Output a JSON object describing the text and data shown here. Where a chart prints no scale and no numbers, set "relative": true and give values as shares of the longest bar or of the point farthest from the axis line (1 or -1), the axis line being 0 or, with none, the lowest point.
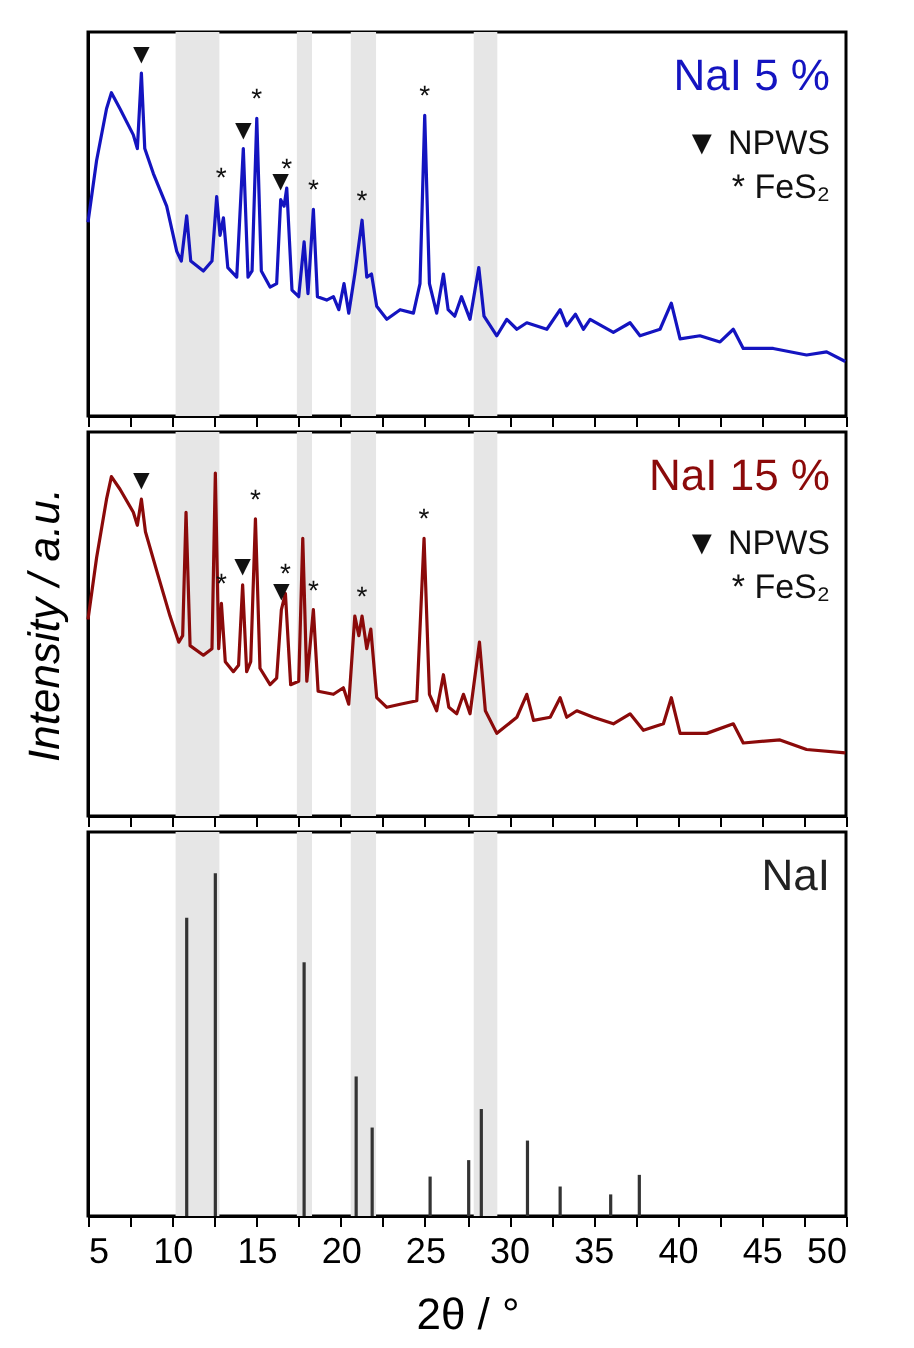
{
  "chart_data": [
    {
      "type": "line",
      "title": "NaI 5 %",
      "relative": true,
      "tick_labels": false,
      "xlim": [
        5,
        50
      ],
      "xticks": [
        5,
        {
          "value": 7.5,
          "label": null
        },
        10,
        {
          "value": 12.5,
          "label": null
        },
        15,
        {
          "value": 17.5,
          "label": null
        },
        20,
        {
          "value": 22.5,
          "label": null
        },
        25,
        {
          "value": 27.5,
          "label": null
        },
        30,
        {
          "value": 32.5,
          "label": null
        },
        35,
        {
          "value": 37.5,
          "label": null
        },
        40,
        {
          "value": 42.5,
          "label": null
        },
        45,
        {
          "value": 47.5,
          "label": null
        },
        50
      ],
      "bands": [
        {
          "axis": "x",
          "from": 10.2,
          "to": 12.8,
          "color": "#e6e6e6"
        },
        {
          "axis": "x",
          "from": 17.4,
          "to": 18.3,
          "color": "#e6e6e6"
        },
        {
          "axis": "x",
          "from": 20.6,
          "to": 22.1,
          "color": "#e6e6e6"
        },
        {
          "axis": "x",
          "from": 27.9,
          "to": 29.3,
          "color": "#e6e6e6"
        }
      ],
      "annotations": [
        "▼ NPWS",
        "* FeS₂",
        {
          "text": "▼",
          "x": 8.17,
          "y": 1.0
        },
        {
          "text": "*",
          "x": 12.9,
          "y": 0.64
        },
        {
          "text": "▼",
          "x": 14.22,
          "y": 0.78
        },
        {
          "text": "*",
          "x": 15.02,
          "y": 0.868
        },
        {
          "text": "▼",
          "x": 16.44,
          "y": 0.631
        },
        {
          "text": "*",
          "x": 16.8,
          "y": 0.665
        },
        {
          "text": "*",
          "x": 18.38,
          "y": 0.603
        },
        {
          "text": "*",
          "x": 21.27,
          "y": 0.571
        },
        {
          "text": "*",
          "x": 24.99,
          "y": 0.877
        }
      ],
      "series": [
        {
          "color": "#1414c0",
          "x": [
            5.0,
            5.51,
            6.1,
            6.39,
            6.9,
            7.69,
            7.93,
            8.17,
            8.37,
            8.88,
            9.67,
            10.27,
            10.54,
            10.86,
            11.1,
            11.85,
            12.36,
            12.64,
            12.84,
            13.04,
            13.3,
            13.83,
            14.22,
            14.5,
            14.74,
            15.02,
            15.29,
            15.81,
            16.2,
            16.44,
            16.64,
            16.8,
            17.11,
            17.51,
            17.83,
            18.06,
            18.38,
            18.62,
            19.17,
            19.57,
            19.89,
            20.2,
            20.48,
            20.84,
            21.27,
            21.55,
            21.83,
            22.14,
            22.74,
            23.53,
            24.32,
            24.71,
            24.99,
            25.27,
            25.7,
            26.1,
            26.38,
            26.77,
            27.17,
            27.68,
            28.2,
            28.51,
            29.27,
            29.86,
            30.46,
            31.05,
            32.24,
            33.03,
            33.42,
            33.94,
            34.41,
            34.81,
            36.19,
            37.18,
            37.77,
            38.96,
            39.63,
            40.15,
            41.33,
            42.52,
            43.31,
            43.9,
            45.68,
            47.66,
            48.85,
            49.96
          ],
          "values": [
            0.565,
            0.745,
            0.896,
            0.943,
            0.896,
            0.82,
            0.78,
            1.0,
            0.78,
            0.707,
            0.612,
            0.48,
            0.452,
            0.584,
            0.452,
            0.423,
            0.452,
            0.64,
            0.527,
            0.578,
            0.433,
            0.405,
            0.78,
            0.405,
            0.423,
            0.868,
            0.423,
            0.376,
            0.386,
            0.631,
            0.612,
            0.665,
            0.367,
            0.348,
            0.508,
            0.357,
            0.603,
            0.348,
            0.338,
            0.348,
            0.31,
            0.386,
            0.3,
            0.414,
            0.571,
            0.405,
            0.414,
            0.32,
            0.282,
            0.31,
            0.3,
            0.386,
            0.877,
            0.386,
            0.3,
            0.414,
            0.31,
            0.291,
            0.348,
            0.282,
            0.433,
            0.291,
            0.234,
            0.282,
            0.253,
            0.272,
            0.253,
            0.31,
            0.263,
            0.297,
            0.253,
            0.282,
            0.244,
            0.272,
            0.234,
            0.253,
            0.329,
            0.225,
            0.234,
            0.216,
            0.253,
            0.197,
            0.197,
            0.178,
            0.187,
            0.159
          ]
        }
      ]
    },
    {
      "type": "line",
      "title": "NaI 15 %",
      "ylabel": "Intensity / a.u.",
      "relative": true,
      "tick_labels": false,
      "xlim": [
        5,
        50
      ],
      "xticks": [
        5,
        {
          "value": 7.5,
          "label": null
        },
        10,
        {
          "value": 12.5,
          "label": null
        },
        15,
        {
          "value": 17.5,
          "label": null
        },
        20,
        {
          "value": 22.5,
          "label": null
        },
        25,
        {
          "value": 27.5,
          "label": null
        },
        30,
        {
          "value": 32.5,
          "label": null
        },
        35,
        {
          "value": 37.5,
          "label": null
        },
        40,
        {
          "value": 42.5,
          "label": null
        },
        45,
        {
          "value": 47.5,
          "label": null
        },
        50
      ],
      "bands": [
        {
          "axis": "x",
          "from": 10.2,
          "to": 12.8,
          "color": "#e6e6e6"
        },
        {
          "axis": "x",
          "from": 17.4,
          "to": 18.3,
          "color": "#e6e6e6"
        },
        {
          "axis": "x",
          "from": 20.6,
          "to": 22.1,
          "color": "#e6e6e6"
        },
        {
          "axis": "x",
          "from": 27.9,
          "to": 29.3,
          "color": "#e6e6e6"
        }
      ],
      "annotations": [
        "▼ NPWS",
        "* FeS₂",
        {
          "text": "▼",
          "x": 8.17,
          "y": 0.924
        },
        {
          "text": "*",
          "x": 12.92,
          "y": 0.62
        },
        {
          "text": "▼",
          "x": 14.18,
          "y": 0.674
        },
        {
          "text": "*",
          "x": 14.94,
          "y": 0.867
        },
        {
          "text": "▼",
          "x": 16.48,
          "y": 0.602
        },
        {
          "text": "*",
          "x": 16.72,
          "y": 0.649
        },
        {
          "text": "*",
          "x": 18.38,
          "y": 0.602
        },
        {
          "text": "*",
          "x": 21.27,
          "y": 0.583
        },
        {
          "text": "*",
          "x": 24.95,
          "y": 0.81
        }
      ],
      "series": [
        {
          "color": "#8b0a0a",
          "x": [
            5.0,
            5.51,
            6.1,
            6.39,
            6.9,
            7.69,
            7.93,
            8.17,
            8.41,
            9.08,
            9.87,
            10.39,
            10.62,
            10.82,
            11.06,
            11.85,
            12.36,
            12.56,
            12.76,
            12.92,
            13.15,
            13.63,
            13.94,
            14.18,
            14.42,
            14.66,
            14.94,
            15.21,
            15.81,
            16.2,
            16.48,
            16.72,
            17.03,
            17.51,
            17.75,
            17.99,
            18.38,
            18.66,
            19.57,
            20.16,
            20.48,
            20.84,
            21.08,
            21.27,
            21.55,
            21.79,
            22.14,
            22.74,
            23.53,
            24.52,
            24.95,
            25.27,
            25.7,
            26.1,
            26.42,
            26.89,
            27.29,
            27.68,
            28.24,
            28.59,
            29.27,
            30.46,
            31.05,
            31.45,
            32.44,
            33.03,
            33.42,
            34.02,
            35.0,
            36.19,
            37.18,
            37.97,
            39.16,
            39.63,
            40.15,
            41.73,
            43.31,
            43.9,
            46.08,
            47.66,
            49.96
          ],
          "values": [
            0.573,
            0.753,
            0.924,
            0.99,
            0.953,
            0.886,
            0.848,
            0.924,
            0.829,
            0.715,
            0.583,
            0.507,
            0.526,
            0.886,
            0.497,
            0.469,
            0.488,
            1.0,
            0.488,
            0.62,
            0.45,
            0.421,
            0.44,
            0.674,
            0.421,
            0.45,
            0.867,
            0.431,
            0.383,
            0.402,
            0.602,
            0.649,
            0.383,
            0.393,
            0.81,
            0.393,
            0.602,
            0.364,
            0.355,
            0.374,
            0.326,
            0.583,
            0.526,
            0.583,
            0.488,
            0.545,
            0.345,
            0.317,
            0.326,
            0.336,
            0.81,
            0.355,
            0.307,
            0.412,
            0.317,
            0.298,
            0.355,
            0.298,
            0.507,
            0.307,
            0.241,
            0.288,
            0.355,
            0.279,
            0.288,
            0.345,
            0.288,
            0.307,
            0.288,
            0.269,
            0.298,
            0.25,
            0.269,
            0.345,
            0.241,
            0.241,
            0.269,
            0.213,
            0.222,
            0.194,
            0.184
          ]
        }
      ]
    },
    {
      "type": "bar",
      "title": "NaI",
      "xlabel": "2θ / °",
      "relative": true,
      "tick_labels": "x",
      "xlim": [
        5,
        50
      ],
      "xticks": [
        5,
        {
          "value": 7.5,
          "label": null
        },
        10,
        {
          "value": 12.5,
          "label": null
        },
        15,
        {
          "value": 17.5,
          "label": null
        },
        20,
        {
          "value": 22.5,
          "label": null
        },
        25,
        {
          "value": 27.5,
          "label": null
        },
        30,
        {
          "value": 32.5,
          "label": null
        },
        35,
        {
          "value": 37.5,
          "label": null
        },
        40,
        {
          "value": 42.5,
          "label": null
        },
        45,
        {
          "value": 47.5,
          "label": null
        },
        50
      ],
      "bands": [
        {
          "axis": "x",
          "from": 10.2,
          "to": 12.8,
          "color": "#e6e6e6"
        },
        {
          "axis": "x",
          "from": 17.4,
          "to": 18.3,
          "color": "#e6e6e6"
        },
        {
          "axis": "x",
          "from": 20.6,
          "to": 22.1,
          "color": "#e6e6e6"
        },
        {
          "axis": "x",
          "from": 27.9,
          "to": 29.3,
          "color": "#e6e6e6"
        }
      ],
      "series": [
        {
          "color": "#333333",
          "x": [
            10.86,
            12.56,
            17.83,
            20.92,
            21.87,
            25.31,
            27.6,
            28.35,
            31.09,
            33.03,
            36.03,
            37.73
          ],
          "values": [
            0.87,
            1.0,
            0.74,
            0.407,
            0.258,
            0.115,
            0.163,
            0.312,
            0.22,
            0.086,
            0.063,
            0.12
          ]
        }
      ]
    }
  ]
}
